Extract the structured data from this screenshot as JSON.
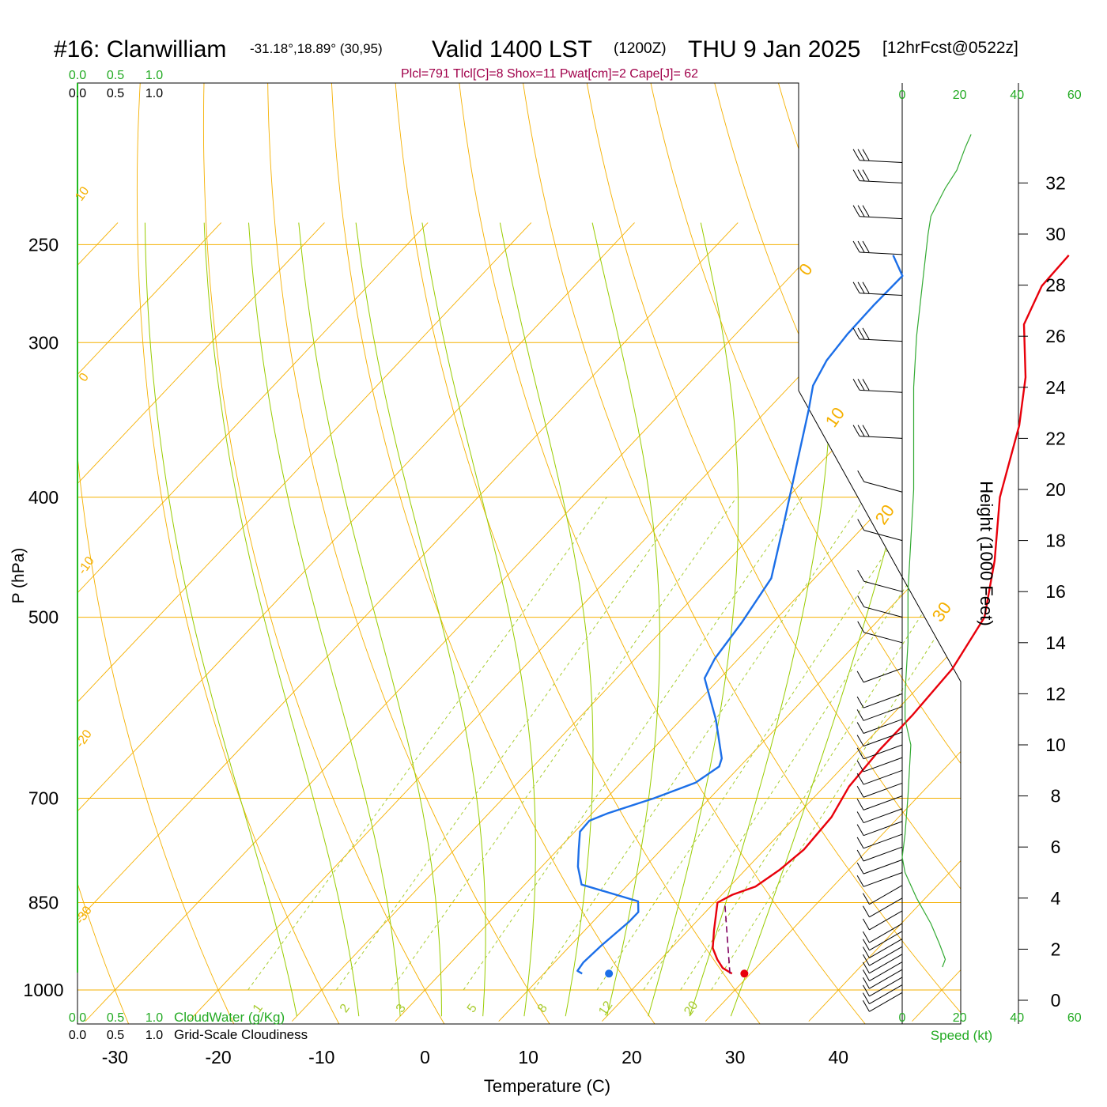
{
  "header": {
    "station": "#16: Clanwilliam",
    "coords": "-31.18°,18.89° (30,95)",
    "valid": "Valid 1400 LST",
    "zulu": "(1200Z)",
    "date": "THU 9 Jan 2025",
    "forecast": "[12hrFcst@0522z]",
    "indices": "Plcl=791 Tlcl[C]=8 Shox=11 Pwat[cm]=2 Cape[J]= 62"
  },
  "chart_data": {
    "type": "line",
    "subtype": "skew-T log-P sounding",
    "xlabel": "Temperature (C)",
    "ylabel": "P (hPa)",
    "y2label": "Height (1000 Feet)",
    "xticks": [
      "-30",
      "-20",
      "-10",
      "0",
      "10",
      "20",
      "30",
      "40"
    ],
    "pressure_ticks": [
      "250",
      "300",
      "400",
      "500",
      "700",
      "850",
      "1000"
    ],
    "height_ticks": [
      "0",
      "2",
      "4",
      "6",
      "8",
      "10",
      "12",
      "14",
      "16",
      "18",
      "20",
      "22",
      "24",
      "26",
      "28",
      "30",
      "32"
    ],
    "speed_axis_label": "Speed (kt)",
    "speed_ticks": [
      "0",
      "20",
      "40",
      "60"
    ],
    "cloud_ticks": [
      "0.0",
      "0.5",
      "1.0"
    ],
    "cloud_water_label": "CloudWater (g/Kg)",
    "cloudiness_label": "Grid-Scale Cloudiness",
    "isotherm_labels": [
      "10",
      "0",
      "-10",
      "-20",
      "-30",
      "0",
      "10",
      "20",
      "30"
    ],
    "mixing_ratio_labels": [
      "1",
      "2",
      "3",
      "5",
      "8",
      "12",
      "20"
    ],
    "series": [
      {
        "role": "temperature",
        "color": "#e8000b",
        "points": [
          [
            28.2,
            970
          ],
          [
            26.8,
            960
          ],
          [
            25.5,
            945
          ],
          [
            24.0,
            925
          ],
          [
            22.5,
            895
          ],
          [
            20.8,
            860
          ],
          [
            20.3,
            850
          ],
          [
            21.0,
            838
          ],
          [
            22.5,
            825
          ],
          [
            23.3,
            800
          ],
          [
            23.8,
            770
          ],
          [
            23.5,
            725
          ],
          [
            22.4,
            685
          ],
          [
            22.0,
            640
          ],
          [
            22.0,
            600
          ],
          [
            21.6,
            550
          ],
          [
            20.0,
            500
          ],
          [
            15.8,
            450
          ],
          [
            10.5,
            400
          ],
          [
            5.8,
            350
          ],
          [
            2.0,
            320
          ],
          [
            -3.0,
            290
          ],
          [
            -4.8,
            270
          ],
          [
            -5.0,
            255
          ]
        ]
      },
      {
        "role": "dewpoint",
        "color": "#1c6fe8",
        "points": [
          [
            13.7,
            970
          ],
          [
            13.0,
            965
          ],
          [
            12.8,
            950
          ],
          [
            13.0,
            920
          ],
          [
            13.5,
            880
          ],
          [
            13.5,
            865
          ],
          [
            12.5,
            848
          ],
          [
            5.5,
            822
          ],
          [
            3.5,
            795
          ],
          [
            2.0,
            770
          ],
          [
            0.5,
            745
          ],
          [
            0.4,
            730
          ],
          [
            1.5,
            720
          ],
          [
            4.6,
            700
          ],
          [
            7.2,
            680
          ],
          [
            8.0,
            660
          ],
          [
            7.5,
            650
          ],
          [
            3.4,
            605
          ],
          [
            -1.5,
            560
          ],
          [
            -2.3,
            540
          ],
          [
            -3.0,
            505
          ],
          [
            -4.2,
            465
          ],
          [
            -8.0,
            420
          ],
          [
            -12.8,
            370
          ],
          [
            -16.0,
            340
          ],
          [
            -17.8,
            325
          ],
          [
            -18.8,
            310
          ],
          [
            -19.2,
            295
          ],
          [
            -19.3,
            280
          ],
          [
            -19.2,
            265
          ],
          [
            -22.0,
            255
          ]
        ]
      },
      {
        "role": "surface parcel ascent",
        "color": "#800060",
        "points": [
          [
            28.0,
            970
          ],
          [
            21.0,
            850
          ]
        ]
      }
    ],
    "surface_markers": {
      "temperature_c": 29.4,
      "dewpoint_c": 16.3,
      "pressure_hpa": 970,
      "temperature_color": "#e8000b",
      "dewpoint_color": "#1c6fe8"
    },
    "wind_profile": {
      "barbs_height_kft": [
        0.3,
        0.6,
        0.9,
        1.2,
        1.5,
        1.8,
        2.1,
        2.4,
        2.7,
        3.0,
        3.5,
        4.0,
        4.5,
        5.0,
        5.5,
        6.0,
        6.5,
        7.0,
        7.5,
        8.0,
        8.5,
        9.0,
        9.5,
        10.0,
        10.5,
        11.0,
        11.5,
        12.0,
        13.0,
        14.0,
        15.0,
        16.0,
        18.0,
        19.9,
        22.0,
        23.8,
        25.8,
        27.6,
        29.2,
        30.6,
        32.0,
        32.8
      ],
      "speed_profile_kft_kt": [
        [
          1.3,
          14
        ],
        [
          1.6,
          15
        ],
        [
          2.2,
          13
        ],
        [
          3.0,
          10
        ],
        [
          4.0,
          5
        ],
        [
          5.0,
          1
        ],
        [
          5.6,
          0
        ],
        [
          6.5,
          1
        ],
        [
          8.0,
          2
        ],
        [
          10.0,
          3
        ],
        [
          11.0,
          1
        ],
        [
          12.0,
          1
        ],
        [
          14.0,
          2
        ],
        [
          16.0,
          2
        ],
        [
          18.0,
          3
        ],
        [
          20.0,
          4
        ],
        [
          21.5,
          4
        ],
        [
          24.0,
          4
        ],
        [
          26.0,
          5
        ],
        [
          28.0,
          7
        ],
        [
          30.0,
          9
        ],
        [
          30.7,
          10
        ],
        [
          31.8,
          15
        ],
        [
          32.5,
          19
        ],
        [
          33.4,
          22
        ],
        [
          33.9,
          24
        ]
      ]
    },
    "colors": {
      "isobar": "#f5b000",
      "isotherm": "#f5b000",
      "dry_adiabat": "#f5b000",
      "moist_adiabat": "#99cc00",
      "mixing_ratio": "#a8cc30",
      "speed_axis": "#22aa22"
    },
    "grid": true
  }
}
